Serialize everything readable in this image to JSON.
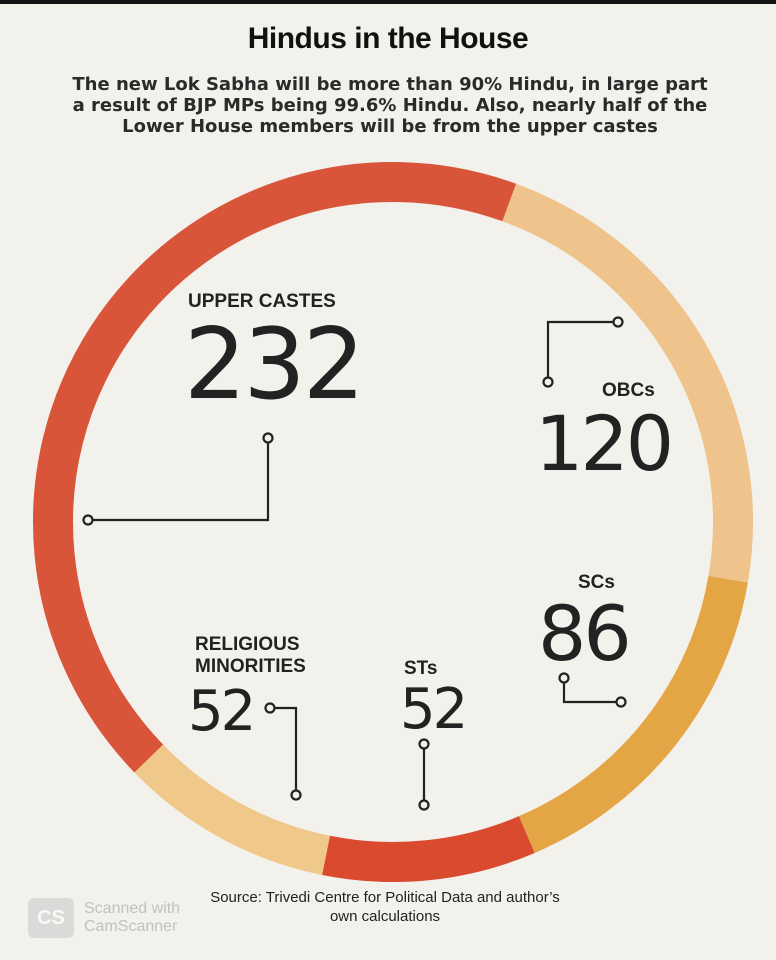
{
  "title": "Hindus in the House",
  "subtitle": "The new Lok Sabha will be more than 90% Hindu, in large part a result of BJP MPs being 99.6% Hindu. Also, nearly half of the Lower House members will be from the upper castes",
  "source": "Source: Trivedi Centre for Political Data and author’s own calculations",
  "watermark": {
    "logo": "CS",
    "line1": "Scanned with",
    "line2": "CamScanner"
  },
  "colors": {
    "upper_castes": "#d9553a",
    "obcs": "#eec38c",
    "scs": "#e4a544",
    "sts": "#d94a2f",
    "religious_minorities": "#f0c889"
  },
  "chart_data": {
    "type": "pie",
    "style": "donut ring",
    "categories": [
      "UPPER CASTES",
      "OBCs",
      "SCs",
      "STs",
      "RELIGIOUS MINORITIES"
    ],
    "values": [
      232,
      120,
      86,
      52,
      52
    ],
    "value_labels": [
      "232",
      "120",
      "86",
      "52",
      "52"
    ]
  }
}
